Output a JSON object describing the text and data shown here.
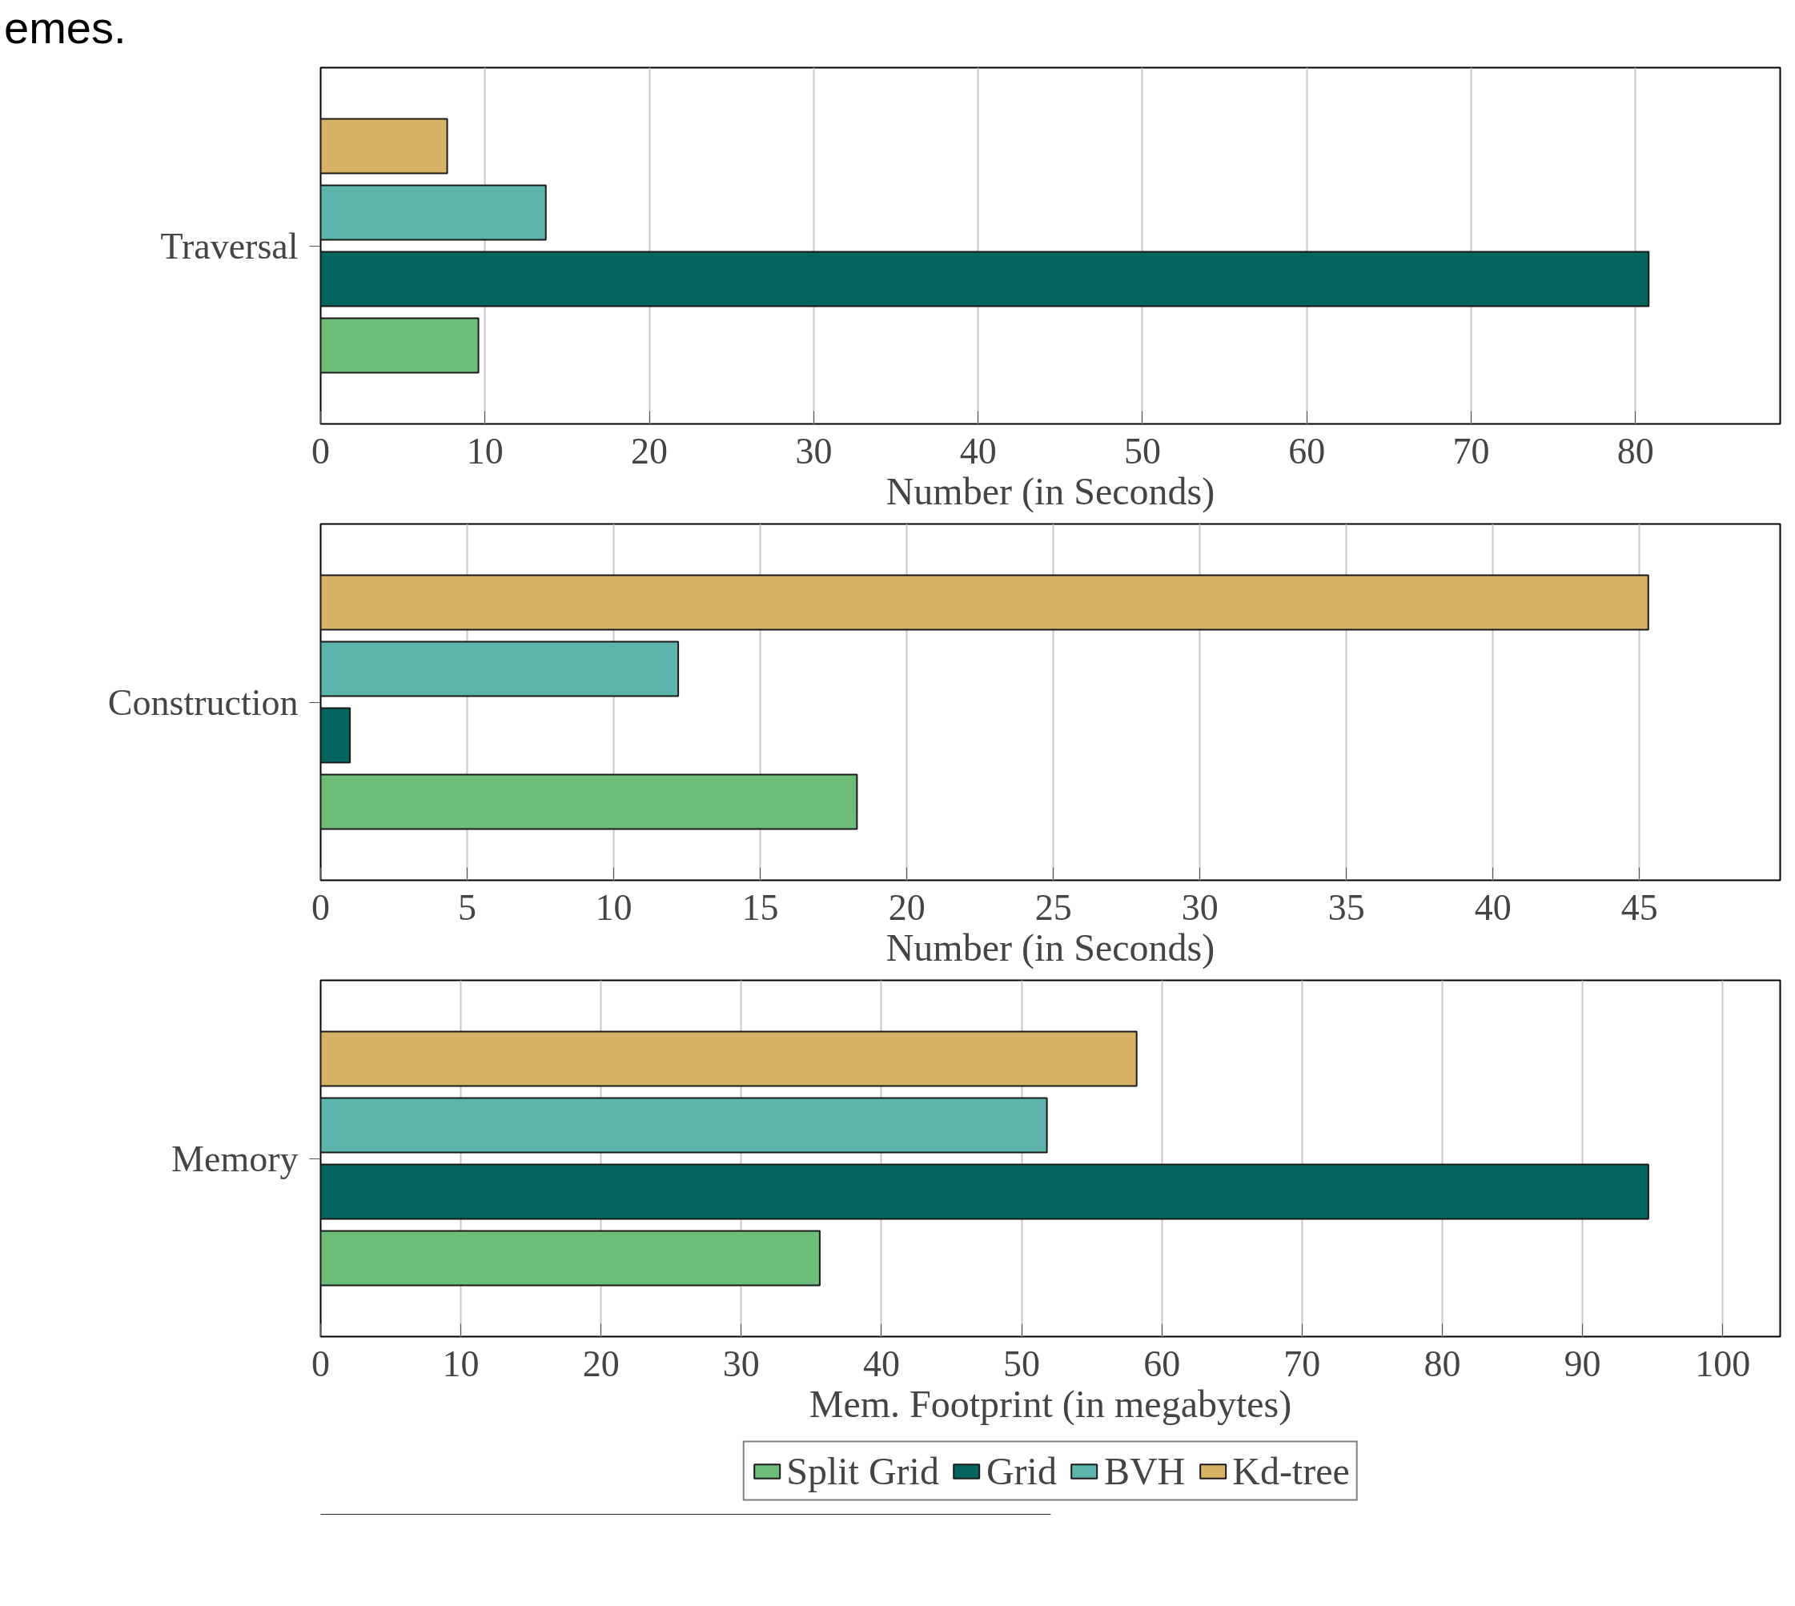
{
  "chart_data": [
    {
      "type": "bar",
      "orientation": "horizontal",
      "annotations": [
        "emes."
      ],
      "categories": [
        "Traversal"
      ],
      "xlabel": "Number (in Seconds)",
      "xlim": [
        0,
        88.8
      ],
      "xticks": [
        0,
        10,
        20,
        30,
        40,
        50,
        60,
        70,
        80
      ],
      "grid": "x",
      "series": [
        {
          "color": "#6dbd78",
          "values": [
            9.6
          ]
        },
        {
          "color": "#03655e",
          "values": [
            80.8
          ]
        },
        {
          "color": "#5cb4ac",
          "values": [
            13.7
          ]
        },
        {
          "color": "#d8b267",
          "values": [
            7.7
          ]
        }
      ]
    },
    {
      "type": "bar",
      "orientation": "horizontal",
      "categories": [
        "Construction"
      ],
      "xlabel": "Number (in Seconds)",
      "xlim": [
        0,
        49.8
      ],
      "xticks": [
        0,
        5,
        10,
        15,
        20,
        25,
        30,
        35,
        40,
        45
      ],
      "grid": "x",
      "series": [
        {
          "color": "#6dbd78",
          "values": [
            18.3
          ]
        },
        {
          "color": "#03655e",
          "values": [
            1.0
          ]
        },
        {
          "color": "#5cb4ac",
          "values": [
            12.2
          ]
        },
        {
          "color": "#d8b267",
          "values": [
            45.3
          ]
        }
      ]
    },
    {
      "type": "bar",
      "orientation": "horizontal",
      "categories": [
        "Memory"
      ],
      "xlabel": "Mem. Footprint (in megabytes)",
      "xlim": [
        0,
        104.1
      ],
      "xticks": [
        0,
        10,
        20,
        30,
        40,
        50,
        60,
        70,
        80,
        90,
        100
      ],
      "grid": "x",
      "legend": "bottom",
      "series": [
        {
          "name": "Split Grid",
          "color": "#6dbd78",
          "values": [
            35.6
          ]
        },
        {
          "name": "Grid",
          "color": "#03655e",
          "values": [
            94.7
          ]
        },
        {
          "name": "BVH",
          "color": "#5cb4ac",
          "values": [
            51.8
          ]
        },
        {
          "name": "Kd-tree",
          "color": "#d8b267",
          "values": [
            58.2
          ]
        }
      ]
    }
  ]
}
